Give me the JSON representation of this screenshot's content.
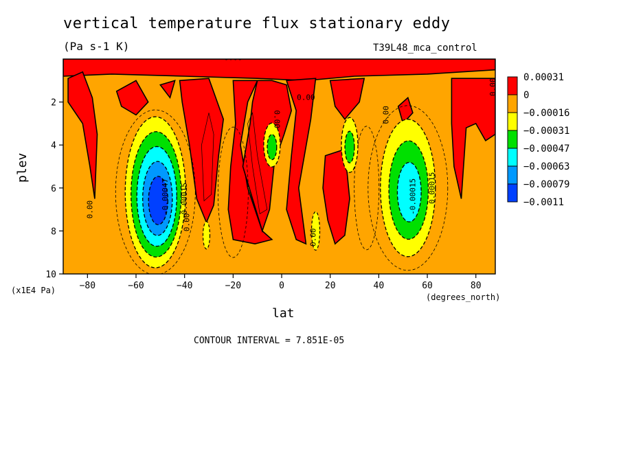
{
  "header": {
    "title": "vertical temperature flux stationary eddy",
    "units": "(Pa s-1 K)",
    "run_name": "T39L48_mca_control"
  },
  "footer": {
    "contour_interval": "CONTOUR INTERVAL = 7.851E-05"
  },
  "chart_data": {
    "type": "heatmap",
    "title": "vertical temperature flux stationary eddy",
    "xlabel": "lat",
    "ylabel": "plev",
    "x_units": "(degrees_north)",
    "y_units": "(x1E4 Pa)",
    "xlim": [
      -90,
      88
    ],
    "ylim": [
      10,
      0
    ],
    "x_ticks": [
      -80,
      -60,
      -40,
      -20,
      0,
      20,
      40,
      60,
      80
    ],
    "y_ticks": [
      2,
      4,
      6,
      8,
      10
    ],
    "legend": {
      "position": "right",
      "labels": [
        "0.00031",
        "0",
        "-0.00016",
        "-0.00031",
        "-0.00047",
        "-0.00063",
        "-0.00079",
        "-0.0011"
      ],
      "colors": [
        "#ff0000",
        "#ffa500",
        "#ffff00",
        "#00e000",
        "#00ffff",
        "#0099ff",
        "#0040ff"
      ]
    },
    "colors": {
      "positive": "#ff0000",
      "zero": "#ffa500",
      "neg1": "#ffff00",
      "neg2": "#00e000",
      "neg3": "#00ffff",
      "neg4": "#0099ff",
      "neg5": "#0040ff"
    },
    "contour_labels": [
      "0.00",
      "0.00",
      "0.00",
      "0.00",
      "0.00",
      "0.00",
      "0.00",
      "0.00",
      "-0.00047",
      "-0.00015",
      "-0.00015",
      "0.00015"
    ],
    "features": [
      {
        "lat": -50,
        "plev": 6.6,
        "min_level": -0.0011
      },
      {
        "lat": 52,
        "plev": 6.0,
        "min_level": -0.00079
      },
      {
        "lat": -4,
        "plev": 4.0,
        "min_level": -0.00047
      },
      {
        "lat": 28,
        "plev": 4.0,
        "min_level": -0.00047
      }
    ],
    "grid": false
  }
}
